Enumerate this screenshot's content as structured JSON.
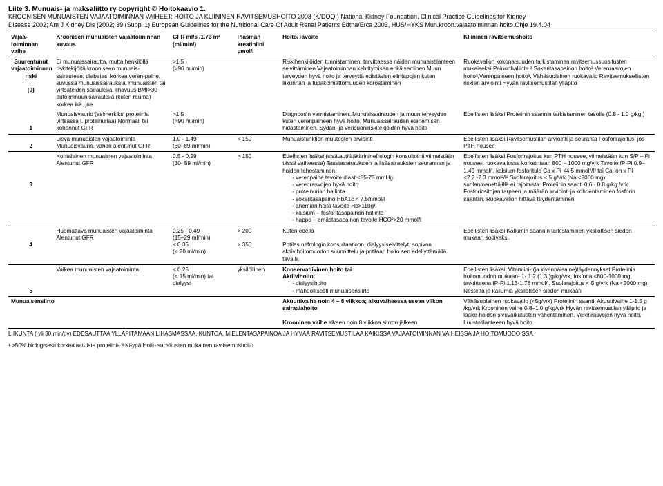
{
  "header": {
    "title": "Liite 3. Munuais- ja maksaliitto ry copyright © Hoitokaavio 1.",
    "line1": "KROONISEN MUNUAISTEN VAJAATOIMINNAN VAIHEET; HOITO JA KLIININEN RAVITSEMUSHOITO 2008 (K/DOQI) National Kidney Foundation, Clinical Practice Guidelines for Kidney",
    "line2": "Disease 2002; Am J Kidney Dis (2002; 39 (Suppl 1) European Guidelines for the Nutritional Care Of Adult Renal Patients Edtna/Erca 2003, HUS/HYKS Mun.kroon.vajaatoiminnan hoito.Ohje 19.4.04"
  },
  "columns": {
    "stage": "Vajaa-toiminnan vaihe",
    "desc": "Kroonisen munuaisten vajaatoiminnan kuvaus",
    "gfr": "GFR ml/s /1.73 m² (ml/min/)",
    "plasma": "Plasman kreatiniini µmol/l",
    "target": "Hoito/Tavoite",
    "nutrition": "Kliininen ravitsemushoito"
  },
  "rows": {
    "r0": {
      "stage": "Suurentunut vajaatoiminnan riski",
      "stage2": "(0)",
      "desc": "Ei munuaissairautta, mutta henkilöllä riskitekijöitä krooniseen munuais-sairauteen; diabetes, korkea veren-paine, suvussa munuaissairauksia, munuaisten tai virtsateiden sairauksia, lihavuus BMI>30 autoimmuunisairauksia (kuten reuma) korkea ikä, jne",
      "gfr": ">1.5",
      "gfr2": "(>90 ml/min)",
      "plasma": "",
      "target": "Riskihenkilöiden tunnistaminen, tarvittaessa näiden munuaistilanteen selvittäminen Vajaatoiminnan kehittymisen ehkäiseminen Muun terveyden hyvä hoito ja terveyttä edistävien elintapojen kuten liikunnan ja tupakoimattomuuden korostaminen",
      "nutr": "Ruokavalion kokonaisuuden tarkistaminen ravitsemussuositusten mukaiseksi Painonhallinta ³ Sokeritasapainon hoito³ Verenrasvojen hoito³,Verenpaineen hoito³, Vähäsuolainen ruokavalio Ravitsemuksellisten riskien arviointi Hyvän ravitsemustilan ylläpito"
    },
    "r1": {
      "stage": "1",
      "desc": "Munuaisvaurio (esimerkiksi proteiinia virtsassa l. proteinuriaa) Normaali tai kohonnut GFR",
      "gfr": ">1.5",
      "gfr2": "(>90 ml/min)",
      "target": "Diagnoosin varmistaminen..Munuaissairauden ja muun terveyden kuten verenpaineen hyvä hoito. Munuaissairauden etenemisen hidastaminen. Sydän- ja verisuoniriskitekjöiden hyvä hoito",
      "nutr": "Edellisten lisäksi Proteiinin saannin tarkistaminen tasolle (0.8 - 1.0 g/kg )"
    },
    "r2": {
      "stage": "2",
      "desc": "Lievä munuaisten vajaatoiminta Munuaisvaurio, vähän alentunut GFR",
      "gfr": "1.0 - 1.49",
      "gfr2": "(60–89 ml/min)",
      "plasma": "< 150",
      "target": "Munuaisfunktion muutosten arviointi",
      "nutr": "Edellisten lisäksi Ravitsemustilan arviointi ja seuranta Fosforirajoitus, jos PTH nousee"
    },
    "r3": {
      "stage": "3",
      "desc": "Kohtalainen munuaisten vajaatoiminta Alentunut GFR",
      "gfr": "0.5 - 0.99",
      "gfr2": "(30- 59 ml/min)",
      "plasma": "> 150",
      "target_head": "Edellisten lisäksi (sisätautilääkärin/nefrologin konsultointi viimeistään tässä vaiheessa) Taustasairauksien ja lisäsairauksien seurannan ja hoidon tehostaminen:",
      "target_items": [
        "verenpaine tavoite diast.<85-75 mmHg",
        "verenrasvojen hyvä hoito",
        "proteinurian hallinta",
        "sokeritasapaino HbA1c < 7.5mmol/l",
        "anemian hoito tavoite Hb>110g/l",
        "kalsium – fosforitasapainon hallinta",
        "happo – emästasapainon tavoite HCO³>20 mmol/l"
      ],
      "nutr": "Edellisten lisäksi Fosforirajoitus kun PTH nousee, viimeistään kun S/P – Pi nousee; ruokavaliossa korkeintaan 800 – 1000 mg/vrk Tavoite fP-Pi 0.9–1.49 mmol/l. kalsium-fosforitulo Ca x Pi <4.5 mmol²/l² tai Ca-ion x Pi <2.2.-2.3 mmol²/l² Suolarajoitus < 5 g/vrk (Na <2000 mg); suolanmenettäjillä ei rajoitusta. Proteiinin saanti 0.6 - 0.8 g/kg /vrk Fosforinsitojan tarpeen ja määrän arviointi ja kohdentaminen fosforin saantiin. Ruokavalion riittävä täydentäminen"
    },
    "r4": {
      "stage": "4",
      "desc": "Huomattava munuaisten vajaatoiminta Alentunut GFR",
      "gfr": "0.25 - 0.49",
      "gfr2": "(15–29 ml/min)",
      "gfr3": "< 0.35",
      "gfr4": "(< 20 ml/min)",
      "plasma": "> 200",
      "plasma2": "> 350",
      "target": "Kuten edellä",
      "target2": "Potilas nefrologin konsultaatioon, dialyysiselvittelyt, sopivan aktiivihoitomuodon suunnittelu ja potilaan hoito sen edellyttämällä tavalla",
      "nutr": "Edellisten lisäksi Kaliumin saannin tarkistaminen yksilöllisen siedon mukaan sopivaksi."
    },
    "r5": {
      "stage": "5",
      "desc": "Vaikea munuaisten vajaatoiminta",
      "gfr": "< 0.25",
      "gfr2": "(< 15 ml/min) tai dialyysi",
      "plasma": "yksilöllinen",
      "target_head1": "Konservatiivinen hoito tai",
      "target_head2": "Aktiivihoito:",
      "target_items": [
        "dialyysihoito",
        "mahdollisesti munuaisensiirto"
      ],
      "nutr": "Edellisten lisäksi: Vitamiini- (ja kivennäisaine)täydennykset Proteiinia hoitomuodon mukaan¹ 1- 1.2 (1.3 )g/kg/vrk, fosforia <800-1000 mg, tavoitteena fP-Pi 1.13-1.78 mmol/l. Suolarajoitus < 5 g/vrk (Na <2000 mg); Nestettä ja kaliumia yksilöllisen siedon mukaan"
    },
    "rSiirto": {
      "stage": "Munuaisensiirto",
      "target": "Akuuttivaihe noin 4 – 8 viikkoa; alkuvaiheessa usean viikon sairaalahoito",
      "target2": "Krooninen vaihe alkaen noin 8 viikkoa siirron jälkeen",
      "nutr": "Vähäsuolainen ruokavalio (<5g/vrk) Proteiinin saanti: Akuuttivaihe 1-1.5 g /kg/vrk Krooninen vaihe 0.8–1.0 g/kg/vrk Hyvän ravitsemustilan ylläpito ja lääke-hoidon sivuvaikutusten vähentäminen. Verenrasvojen hyvä hoito. Luustotilanteeen hyvä hoito."
    }
  },
  "footer": "LIIKUNTA ( yli 30 min/pv) EDESAUTTAA YLLÄPITÄMÄÄN LIHASMASSAA, KUNTOA, MIELENTASAPAINOA JA HYVÄÄ RAVITSEMUSTILAA KAIKISSA VAJAATOIMINNAN VAIHEISSA JA HOITOMUODOISSA",
  "footnote": "¹ >50% biologisesti korkealaatuista proteiinia ³ Käypä Hoito suositusten mukainen ravitsemushoito"
}
